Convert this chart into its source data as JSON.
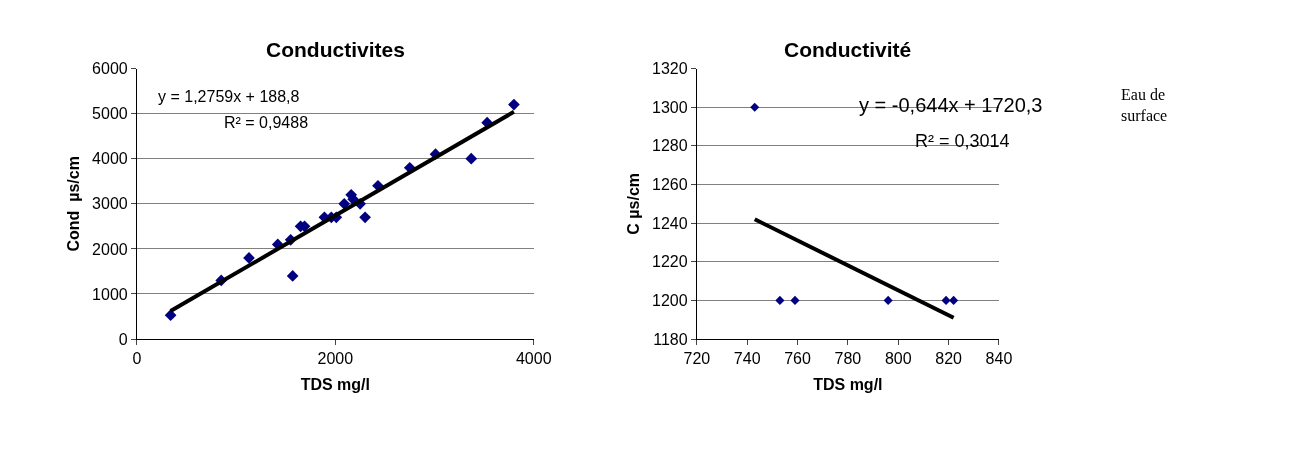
{
  "chart_data": [
    {
      "type": "scatter",
      "title": "Conductivites",
      "xlabel": "TDS mg/l",
      "ylabel": "Cond  µs/cm",
      "xlim": [
        0,
        4000
      ],
      "xticks": [
        0,
        2000,
        4000
      ],
      "ylim": [
        0,
        6000
      ],
      "yticks": [
        0,
        1000,
        2000,
        3000,
        4000,
        5000,
        6000
      ],
      "grid": "y",
      "annotations": [
        "y = 1,2759x + 188,8",
        "R² = 0,9488"
      ],
      "series": [
        {
          "marker": "diamond",
          "color": "#000080",
          "x": [
            340,
            850,
            1130,
            1420,
            1550,
            1570,
            1650,
            1690,
            1890,
            1960,
            2010,
            2090,
            2160,
            2180,
            2250,
            2300,
            2430,
            2750,
            3010,
            3370,
            3530,
            3800
          ],
          "values": [
            530,
            1300,
            1800,
            2100,
            2200,
            1400,
            2500,
            2500,
            2700,
            2700,
            2700,
            3000,
            3200,
            3100,
            3000,
            2700,
            3400,
            3800,
            4100,
            4000,
            4800,
            5200
          ]
        },
        {
          "type": "line",
          "marker": "none",
          "color": "#000000",
          "x": [
            340,
            3800
          ],
          "values": [
            620,
            5040
          ]
        }
      ]
    },
    {
      "type": "scatter",
      "title": "Conductivité",
      "xlabel": "TDS mg/l",
      "ylabel": "C µs/cm",
      "xlim": [
        720,
        840
      ],
      "xticks": [
        720,
        740,
        760,
        780,
        800,
        820,
        840
      ],
      "ylim": [
        1180,
        1320
      ],
      "yticks": [
        1180,
        1200,
        1220,
        1240,
        1260,
        1280,
        1300,
        1320
      ],
      "grid": "y",
      "annotations": [
        "y = -0,644x + 1720,3",
        "R² = 0,3014",
        "Eau de surface"
      ],
      "series": [
        {
          "marker": "diamond",
          "color": "#000080",
          "x": [
            743,
            753,
            759,
            796,
            819,
            822
          ],
          "values": [
            1300,
            1200,
            1200,
            1200,
            1200,
            1200
          ]
        },
        {
          "type": "line",
          "marker": "none",
          "color": "#000000",
          "x": [
            743,
            822
          ],
          "values": [
            1242,
            1191
          ]
        }
      ]
    }
  ]
}
